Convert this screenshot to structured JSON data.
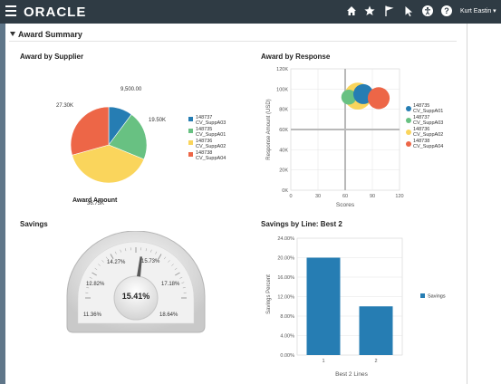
{
  "topbar": {
    "brand": "ORACLE",
    "user_name": "Kurt Eastin ▾",
    "icons": [
      "home-icon",
      "star-icon",
      "flag-icon",
      "cursor-icon",
      "accessibility-icon",
      "help-icon"
    ]
  },
  "section": {
    "title": "Award Summary"
  },
  "award_by_supplier": {
    "title": "Award by Supplier",
    "subtitle": "Award Amount",
    "legend": [
      {
        "line1": "148737",
        "line2": "CV_SuppA03",
        "color": "#267db3"
      },
      {
        "line1": "148735",
        "line2": "CV_SuppA01",
        "color": "#68c182"
      },
      {
        "line1": "148736",
        "line2": "CV_SuppA02",
        "color": "#fad55c"
      },
      {
        "line1": "148738",
        "line2": "CV_SuppA04",
        "color": "#ed6647"
      }
    ],
    "slice_labels": [
      "9,500.00",
      "19.50K",
      "36.75K",
      "27.30K"
    ]
  },
  "award_by_response": {
    "title": "Award by Response",
    "xlabel": "Scores",
    "ylabel": "Response Amount (USD)",
    "xticks": [
      "0",
      "30",
      "60",
      "90",
      "120"
    ],
    "yticks": [
      "0K",
      "20K",
      "40K",
      "60K",
      "80K",
      "100K",
      "120K"
    ],
    "legend": [
      {
        "line1": "148735",
        "line2": "CV_SuppA01",
        "color": "#267db3"
      },
      {
        "line1": "148737",
        "line2": "CV_SuppA03",
        "color": "#68c182"
      },
      {
        "line1": "148736",
        "line2": "CV_SuppA02",
        "color": "#fad55c"
      },
      {
        "line1": "148738",
        "line2": "CV_SuppA04",
        "color": "#ed6647"
      }
    ]
  },
  "savings": {
    "title": "Savings",
    "value": "15.41%",
    "tick_labels": [
      "11.36%",
      "12.82%",
      "14.27%",
      "15.73%",
      "17.18%",
      "18.64%"
    ]
  },
  "savings_by_line": {
    "title": "Savings by Line: Best 2",
    "xlabel": "Best 2 Lines",
    "ylabel": "Savings Percent",
    "legend": "Savings",
    "yticks": [
      "0.00%",
      "4.00%",
      "8.00%",
      "12.00%",
      "16.00%",
      "20.00%",
      "24.00%"
    ]
  },
  "chart_data": [
    {
      "type": "pie",
      "title": "Award by Supplier",
      "subtitle": "Award Amount",
      "categories": [
        "148737 CV_SuppA03",
        "148735 CV_SuppA01",
        "148736 CV_SuppA02",
        "148738 CV_SuppA04"
      ],
      "values": [
        9500,
        19500,
        36750,
        27300
      ],
      "colors": [
        "#267db3",
        "#68c182",
        "#fad55c",
        "#ed6647"
      ],
      "legend": "right"
    },
    {
      "type": "scatter",
      "title": "Award by Response",
      "xlabel": "Scores",
      "ylabel": "Response Amount (USD)",
      "xlim": [
        0,
        120
      ],
      "ylim": [
        0,
        120000
      ],
      "legend": "right",
      "grid": true,
      "series": [
        {
          "name": "148735 CV_SuppA01",
          "x": [
            80
          ],
          "y": [
            95000
          ],
          "size": 1.0,
          "color": "#267db3"
        },
        {
          "name": "148737 CV_SuppA03",
          "x": [
            64
          ],
          "y": [
            92000
          ],
          "size": 0.75,
          "color": "#68c182"
        },
        {
          "name": "148736 CV_SuppA02",
          "x": [
            74
          ],
          "y": [
            93000
          ],
          "size": 1.35,
          "color": "#fad55c"
        },
        {
          "name": "148738 CV_SuppA04",
          "x": [
            97
          ],
          "y": [
            91000
          ],
          "size": 1.1,
          "color": "#ed6647"
        }
      ]
    },
    {
      "type": "gauge",
      "title": "Savings",
      "value": 15.41,
      "min": 9.9,
      "max": 20.1,
      "ticks": [
        11.36,
        12.82,
        14.27,
        15.73,
        17.18,
        18.64
      ]
    },
    {
      "type": "bar",
      "title": "Savings by Line: Best 2",
      "xlabel": "Best 2 Lines",
      "ylabel": "Savings Percent",
      "categories": [
        "1",
        "2"
      ],
      "series": [
        {
          "name": "Savings",
          "values": [
            20.0,
            10.0
          ]
        }
      ],
      "ylim": [
        0,
        24
      ],
      "legend": "right",
      "color": "#267db3"
    }
  ]
}
